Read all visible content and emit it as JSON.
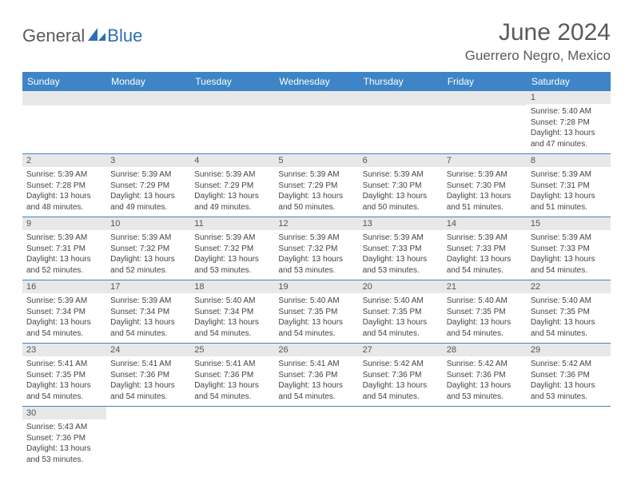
{
  "brand": {
    "word1": "General",
    "word2": "Blue",
    "sail_color": "#2b6fb5",
    "text_color1": "#5a5a5a"
  },
  "header": {
    "title": "June 2024",
    "location": "Guerrero Negro, Mexico"
  },
  "colors": {
    "header_bg": "#3d85c6",
    "header_fg": "#ffffff",
    "daynum_bg": "#e8e8e8",
    "border": "#3d85c6"
  },
  "weekdays": [
    "Sunday",
    "Monday",
    "Tuesday",
    "Wednesday",
    "Thursday",
    "Friday",
    "Saturday"
  ],
  "weeks": [
    [
      null,
      null,
      null,
      null,
      null,
      null,
      {
        "n": "1",
        "sr": "5:40 AM",
        "ss": "7:28 PM",
        "dl": "13 hours and 47 minutes."
      }
    ],
    [
      {
        "n": "2",
        "sr": "5:39 AM",
        "ss": "7:28 PM",
        "dl": "13 hours and 48 minutes."
      },
      {
        "n": "3",
        "sr": "5:39 AM",
        "ss": "7:29 PM",
        "dl": "13 hours and 49 minutes."
      },
      {
        "n": "4",
        "sr": "5:39 AM",
        "ss": "7:29 PM",
        "dl": "13 hours and 49 minutes."
      },
      {
        "n": "5",
        "sr": "5:39 AM",
        "ss": "7:29 PM",
        "dl": "13 hours and 50 minutes."
      },
      {
        "n": "6",
        "sr": "5:39 AM",
        "ss": "7:30 PM",
        "dl": "13 hours and 50 minutes."
      },
      {
        "n": "7",
        "sr": "5:39 AM",
        "ss": "7:30 PM",
        "dl": "13 hours and 51 minutes."
      },
      {
        "n": "8",
        "sr": "5:39 AM",
        "ss": "7:31 PM",
        "dl": "13 hours and 51 minutes."
      }
    ],
    [
      {
        "n": "9",
        "sr": "5:39 AM",
        "ss": "7:31 PM",
        "dl": "13 hours and 52 minutes."
      },
      {
        "n": "10",
        "sr": "5:39 AM",
        "ss": "7:32 PM",
        "dl": "13 hours and 52 minutes."
      },
      {
        "n": "11",
        "sr": "5:39 AM",
        "ss": "7:32 PM",
        "dl": "13 hours and 53 minutes."
      },
      {
        "n": "12",
        "sr": "5:39 AM",
        "ss": "7:32 PM",
        "dl": "13 hours and 53 minutes."
      },
      {
        "n": "13",
        "sr": "5:39 AM",
        "ss": "7:33 PM",
        "dl": "13 hours and 53 minutes."
      },
      {
        "n": "14",
        "sr": "5:39 AM",
        "ss": "7:33 PM",
        "dl": "13 hours and 54 minutes."
      },
      {
        "n": "15",
        "sr": "5:39 AM",
        "ss": "7:33 PM",
        "dl": "13 hours and 54 minutes."
      }
    ],
    [
      {
        "n": "16",
        "sr": "5:39 AM",
        "ss": "7:34 PM",
        "dl": "13 hours and 54 minutes."
      },
      {
        "n": "17",
        "sr": "5:39 AM",
        "ss": "7:34 PM",
        "dl": "13 hours and 54 minutes."
      },
      {
        "n": "18",
        "sr": "5:40 AM",
        "ss": "7:34 PM",
        "dl": "13 hours and 54 minutes."
      },
      {
        "n": "19",
        "sr": "5:40 AM",
        "ss": "7:35 PM",
        "dl": "13 hours and 54 minutes."
      },
      {
        "n": "20",
        "sr": "5:40 AM",
        "ss": "7:35 PM",
        "dl": "13 hours and 54 minutes."
      },
      {
        "n": "21",
        "sr": "5:40 AM",
        "ss": "7:35 PM",
        "dl": "13 hours and 54 minutes."
      },
      {
        "n": "22",
        "sr": "5:40 AM",
        "ss": "7:35 PM",
        "dl": "13 hours and 54 minutes."
      }
    ],
    [
      {
        "n": "23",
        "sr": "5:41 AM",
        "ss": "7:35 PM",
        "dl": "13 hours and 54 minutes."
      },
      {
        "n": "24",
        "sr": "5:41 AM",
        "ss": "7:36 PM",
        "dl": "13 hours and 54 minutes."
      },
      {
        "n": "25",
        "sr": "5:41 AM",
        "ss": "7:36 PM",
        "dl": "13 hours and 54 minutes."
      },
      {
        "n": "26",
        "sr": "5:41 AM",
        "ss": "7:36 PM",
        "dl": "13 hours and 54 minutes."
      },
      {
        "n": "27",
        "sr": "5:42 AM",
        "ss": "7:36 PM",
        "dl": "13 hours and 54 minutes."
      },
      {
        "n": "28",
        "sr": "5:42 AM",
        "ss": "7:36 PM",
        "dl": "13 hours and 53 minutes."
      },
      {
        "n": "29",
        "sr": "5:42 AM",
        "ss": "7:36 PM",
        "dl": "13 hours and 53 minutes."
      }
    ],
    [
      {
        "n": "30",
        "sr": "5:43 AM",
        "ss": "7:36 PM",
        "dl": "13 hours and 53 minutes."
      },
      null,
      null,
      null,
      null,
      null,
      null
    ]
  ],
  "labels": {
    "sunrise": "Sunrise:",
    "sunset": "Sunset:",
    "daylight": "Daylight:"
  }
}
